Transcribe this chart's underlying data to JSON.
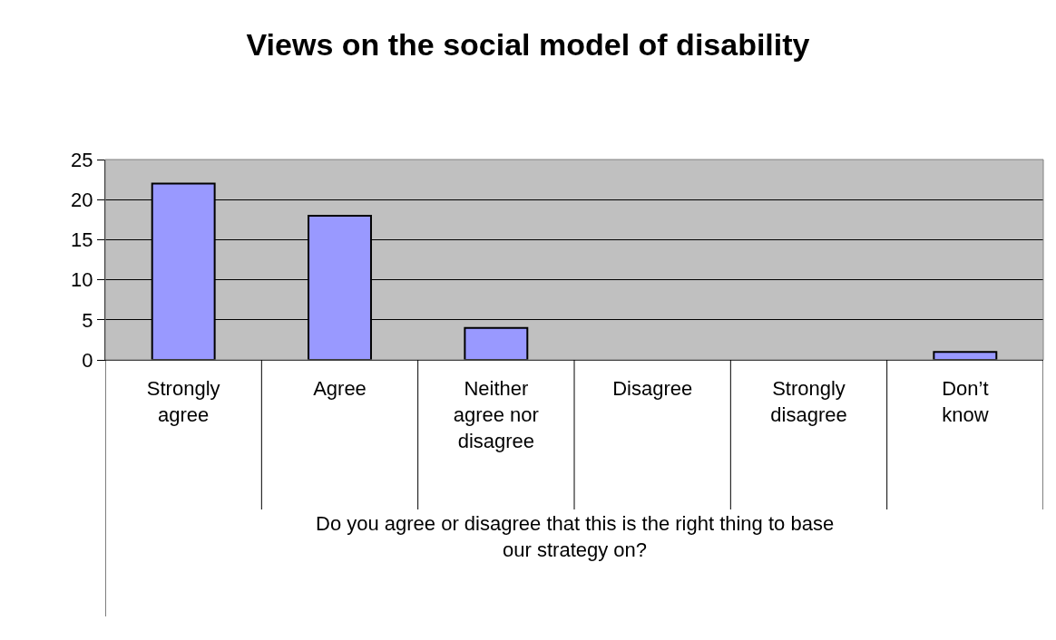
{
  "chart_data": {
    "type": "bar",
    "title": "Views on the social model of disability",
    "xlabel": "Do you agree or disagree that this is the right thing to base our strategy on?",
    "categories": [
      "Strongly agree",
      "Agree",
      "Neither agree nor disagree",
      "Disagree",
      "Strongly disagree",
      "Don’t know"
    ],
    "values": [
      22,
      18,
      4,
      0,
      0,
      1
    ],
    "color": "#9999ff",
    "ylim": [
      0,
      25
    ],
    "yticks": [
      0,
      5,
      10,
      15,
      20,
      25
    ],
    "grid": "y",
    "legend": false
  }
}
